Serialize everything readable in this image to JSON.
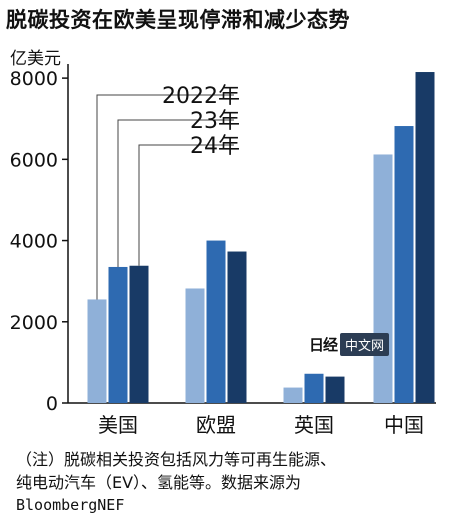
{
  "title": "脱碳投资在欧美呈现停滞和减少态势",
  "unit": "亿美元",
  "note_line1": "（注）脱碳相关投资包括风力等可再生能源、",
  "note_line2": "纯电动汽车（EV）、氢能等。数据来源为",
  "note_line3": "BloombergNEF",
  "watermark": {
    "mark": "日经",
    "text": "中文网"
  },
  "colors": {
    "s2022": "#8fb0d8",
    "s2023": "#2e6ab1",
    "s2024": "#183a66",
    "axis": "#111111"
  },
  "chart_data": {
    "type": "bar",
    "categories": [
      "美国",
      "欧盟",
      "英国",
      "中国"
    ],
    "series": [
      {
        "name": "2022年",
        "values": [
          2550,
          2820,
          380,
          6120
        ]
      },
      {
        "name": "23年",
        "values": [
          3350,
          4000,
          720,
          6820
        ]
      },
      {
        "name": "24年",
        "values": [
          3380,
          3730,
          650,
          8150
        ]
      }
    ],
    "yticks": [
      0,
      2000,
      4000,
      6000,
      8000
    ],
    "ylim": [
      0,
      8200
    ],
    "ylabel": "亿美元",
    "legend_placement": "callout labels inside plot, top-left"
  }
}
